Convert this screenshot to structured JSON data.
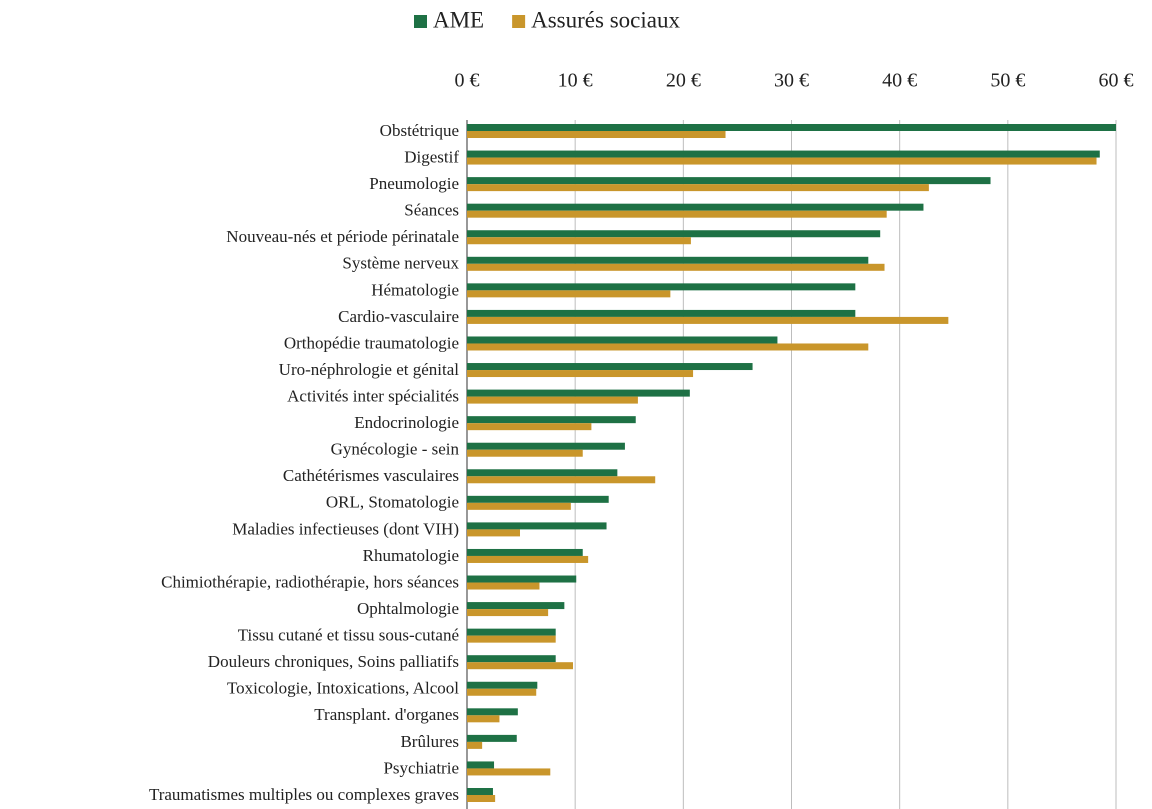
{
  "chart_data": {
    "type": "hbar",
    "categories": [
      "Obstétrique",
      "Digestif",
      "Pneumologie",
      "Séances",
      "Nouveau-nés et période périnatale",
      "Système nerveux",
      "Hématologie",
      "Cardio-vasculaire",
      "Orthopédie traumatologie",
      "Uro-néphrologie et génital",
      "Activités inter spécialités",
      "Endocrinologie",
      "Gynécologie - sein",
      "Cathétérismes vasculaires",
      "ORL, Stomatologie",
      "Maladies infectieuses (dont VIH)",
      "Rhumatologie",
      "Chimiothérapie, radiothérapie, hors séances",
      "Ophtalmologie",
      "Tissu cutané et tissu sous-cutané",
      "Douleurs chroniques, Soins palliatifs",
      "Toxicologie, Intoxications, Alcool",
      "Transplant. d'organes",
      "Brûlures",
      "Psychiatrie",
      "Traumatismes multiples ou complexes graves"
    ],
    "series": [
      {
        "name": "AME",
        "color": "#1e7145",
        "values": [
          60.0,
          58.5,
          48.4,
          42.2,
          38.2,
          37.1,
          35.9,
          35.9,
          28.7,
          26.4,
          20.6,
          15.6,
          14.6,
          13.9,
          13.1,
          12.9,
          10.7,
          10.1,
          9.0,
          8.2,
          8.2,
          6.5,
          4.7,
          4.6,
          2.5,
          2.4
        ]
      },
      {
        "name": "Assurés sociaux",
        "color": "#c9962b",
        "values": [
          23.9,
          58.2,
          42.7,
          38.8,
          20.7,
          38.6,
          18.8,
          44.5,
          37.1,
          20.9,
          15.8,
          11.5,
          10.7,
          17.4,
          9.6,
          4.9,
          11.2,
          6.7,
          7.5,
          8.2,
          9.8,
          6.4,
          3.0,
          1.4,
          7.7,
          2.6
        ]
      }
    ],
    "xlim": [
      0,
      60
    ],
    "xticks": [
      {
        "value": 0,
        "label": "0 €"
      },
      {
        "value": 10,
        "label": "10 €"
      },
      {
        "value": 20,
        "label": "20 €"
      },
      {
        "value": 30,
        "label": "30 €"
      },
      {
        "value": 40,
        "label": "40 €"
      },
      {
        "value": 50,
        "label": "50 €"
      },
      {
        "value": 60,
        "label": "60 €"
      }
    ],
    "grid": true,
    "legend": "top"
  }
}
